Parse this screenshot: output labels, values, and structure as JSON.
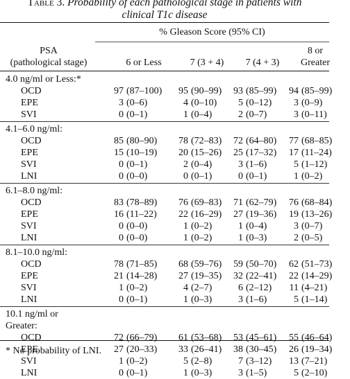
{
  "caption": {
    "label": "Table 3.",
    "title_line1": "Probability of each pathological stage in patients with",
    "title_line2": "clinical T1c disease"
  },
  "header": {
    "group_label": "% Gleason Score (95% CI)",
    "psa_label_line1": "PSA",
    "psa_label_line2": "(pathological stage)",
    "columns": [
      {
        "line1": "",
        "line2": "6 or Less"
      },
      {
        "line1": "",
        "line2": "7 (3 + 4)"
      },
      {
        "line1": "",
        "line2": "7 (4 + 3)"
      },
      {
        "line1": "8 or",
        "line2": "Greater"
      }
    ]
  },
  "groups": [
    {
      "label_lines": [
        "4.0 ng/ml or Less:*"
      ],
      "rows": [
        {
          "stage": "OCD",
          "cells": [
            [
              "97",
              "(87–100)"
            ],
            [
              "95",
              "(90–99)"
            ],
            [
              "93",
              "(85–99)"
            ],
            [
              "94",
              "(85–99)"
            ]
          ]
        },
        {
          "stage": "EPE",
          "cells": [
            [
              "3",
              "(0–6)"
            ],
            [
              "4",
              "(0–10)"
            ],
            [
              "5",
              "(0–12)"
            ],
            [
              "3",
              "(0–9)"
            ]
          ]
        },
        {
          "stage": "SVI",
          "cells": [
            [
              "0",
              "(0–1)"
            ],
            [
              "1",
              "(0–4)"
            ],
            [
              "2",
              "(0–7)"
            ],
            [
              "3",
              "(0–11)"
            ]
          ]
        }
      ]
    },
    {
      "label_lines": [
        "4.1–6.0 ng/ml:"
      ],
      "rows": [
        {
          "stage": "OCD",
          "cells": [
            [
              "85",
              "(80–90)"
            ],
            [
              "78",
              "(72–83)"
            ],
            [
              "72",
              "(64–80)"
            ],
            [
              "77",
              "(68–85)"
            ]
          ]
        },
        {
          "stage": "EPE",
          "cells": [
            [
              "15",
              "(10–19)"
            ],
            [
              "20",
              "(15–26)"
            ],
            [
              "25",
              "(17–32)"
            ],
            [
              "17",
              "(11–24)"
            ]
          ]
        },
        {
          "stage": "SVI",
          "cells": [
            [
              "0",
              "(0–1)"
            ],
            [
              "2",
              "(0–4)"
            ],
            [
              "3",
              "(1–6)"
            ],
            [
              "5",
              "(1–12)"
            ]
          ]
        },
        {
          "stage": "LNI",
          "cells": [
            [
              "0",
              "(0–0)"
            ],
            [
              "0",
              "(0–1)"
            ],
            [
              "0",
              "(0–1)"
            ],
            [
              "1",
              "(0–2)"
            ]
          ]
        }
      ]
    },
    {
      "label_lines": [
        "6.1–8.0 ng/ml:"
      ],
      "rows": [
        {
          "stage": "OCD",
          "cells": [
            [
              "83",
              "(78–89)"
            ],
            [
              "76",
              "(69–83)"
            ],
            [
              "71",
              "(62–79)"
            ],
            [
              "76",
              "(68–84)"
            ]
          ]
        },
        {
          "stage": "EPE",
          "cells": [
            [
              "16",
              "(11–22)"
            ],
            [
              "22",
              "(16–29)"
            ],
            [
              "27",
              "(19–36)"
            ],
            [
              "19",
              "(13–26)"
            ]
          ]
        },
        {
          "stage": "SVI",
          "cells": [
            [
              "0",
              "(0–0)"
            ],
            [
              "1",
              "(0–2)"
            ],
            [
              "1",
              "(0–4)"
            ],
            [
              "3",
              "(0–7)"
            ]
          ]
        },
        {
          "stage": "LNI",
          "cells": [
            [
              "0",
              "(0–0)"
            ],
            [
              "1",
              "(0–2)"
            ],
            [
              "1",
              "(0–3)"
            ],
            [
              "2",
              "(0–5)"
            ]
          ]
        }
      ]
    },
    {
      "label_lines": [
        "8.1–10.0 ng/ml:"
      ],
      "rows": [
        {
          "stage": "OCD",
          "cells": [
            [
              "78",
              "(71–85)"
            ],
            [
              "68",
              "(59–76)"
            ],
            [
              "59",
              "(50–70)"
            ],
            [
              "62",
              "(51–73)"
            ]
          ]
        },
        {
          "stage": "EPE",
          "cells": [
            [
              "21",
              "(14–28)"
            ],
            [
              "27",
              "(19–35)"
            ],
            [
              "32",
              "(22–41)"
            ],
            [
              "22",
              "(14–29)"
            ]
          ]
        },
        {
          "stage": "SVI",
          "cells": [
            [
              "1",
              "(0–2)"
            ],
            [
              "4",
              "(2–7)"
            ],
            [
              "6",
              "(2–12)"
            ],
            [
              "11",
              "(4–21)"
            ]
          ]
        },
        {
          "stage": "LNI",
          "cells": [
            [
              "0",
              "(0–1)"
            ],
            [
              "1",
              "(0–3)"
            ],
            [
              "3",
              "(1–6)"
            ],
            [
              "5",
              "(1–14)"
            ]
          ]
        }
      ]
    },
    {
      "label_lines": [
        "10.1 ng/ml or",
        "Greater:"
      ],
      "rows": [
        {
          "stage": "OCD",
          "cells": [
            [
              "72",
              "(66–79)"
            ],
            [
              "61",
              "(53–68)"
            ],
            [
              "53",
              "(45–61)"
            ],
            [
              "55",
              "(46–64)"
            ]
          ]
        },
        {
          "stage": "EPE",
          "cells": [
            [
              "27",
              "(20–33)"
            ],
            [
              "33",
              "(26–41)"
            ],
            [
              "38",
              "(30–45)"
            ],
            [
              "26",
              "(19–34)"
            ]
          ]
        },
        {
          "stage": "SVI",
          "cells": [
            [
              "1",
              "(0–2)"
            ],
            [
              "5",
              "(2–8)"
            ],
            [
              "7",
              "(3–12)"
            ],
            [
              "13",
              "(7–21)"
            ]
          ]
        },
        {
          "stage": "LNI",
          "cells": [
            [
              "0",
              "(0–1)"
            ],
            [
              "1",
              "(0–3)"
            ],
            [
              "3",
              "(1–5)"
            ],
            [
              "5",
              "(2–10)"
            ]
          ]
        }
      ]
    }
  ],
  "footnote": "* No probability of LNI."
}
